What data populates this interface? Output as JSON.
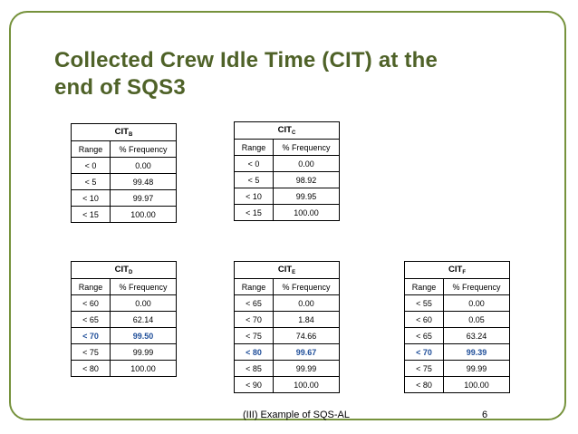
{
  "slide": {
    "title_line1": "Collected Crew Idle Time (CIT) at the",
    "title_line2": "end of SQS3",
    "footer_text": "(III) Example of SQS-AL",
    "page_number": "6",
    "accent_color": "#76923c",
    "title_color": "#4f6228",
    "highlight_color": "#1f4e99"
  },
  "tables": {
    "b": {
      "head": "CIT",
      "sub": "B",
      "col_range": "Range",
      "col_freq": "% Frequency",
      "rows": [
        {
          "range": "< 0",
          "freq": "0.00"
        },
        {
          "range": "< 5",
          "freq": "99.48"
        },
        {
          "range": "< 10",
          "freq": "99.97"
        },
        {
          "range": "< 15",
          "freq": "100.00"
        }
      ]
    },
    "c": {
      "head": "CIT",
      "sub": "C",
      "col_range": "Range",
      "col_freq": "% Frequency",
      "rows": [
        {
          "range": "< 0",
          "freq": "0.00"
        },
        {
          "range": "< 5",
          "freq": "98.92"
        },
        {
          "range": "< 10",
          "freq": "99.95"
        },
        {
          "range": "< 15",
          "freq": "100.00"
        }
      ]
    },
    "d": {
      "head": "CIT",
      "sub": "D",
      "col_range": "Range",
      "col_freq": "% Frequency",
      "highlight_row": 2,
      "rows": [
        {
          "range": "< 60",
          "freq": "0.00"
        },
        {
          "range": "< 65",
          "freq": "62.14"
        },
        {
          "range": "< 70",
          "freq": "99.50"
        },
        {
          "range": "< 75",
          "freq": "99.99"
        },
        {
          "range": "< 80",
          "freq": "100.00"
        }
      ]
    },
    "e": {
      "head": "CIT",
      "sub": "E",
      "col_range": "Range",
      "col_freq": "% Frequency",
      "highlight_row": 3,
      "rows": [
        {
          "range": "< 65",
          "freq": "0.00"
        },
        {
          "range": "< 70",
          "freq": "1.84"
        },
        {
          "range": "< 75",
          "freq": "74.66"
        },
        {
          "range": "< 80",
          "freq": "99.67"
        },
        {
          "range": "< 85",
          "freq": "99.99"
        },
        {
          "range": "< 90",
          "freq": "100.00"
        }
      ]
    },
    "f": {
      "head": "CIT",
      "sub": "F",
      "col_range": "Range",
      "col_freq": "% Frequency",
      "highlight_row": 3,
      "rows": [
        {
          "range": "< 55",
          "freq": "0.00"
        },
        {
          "range": "< 60",
          "freq": "0.05"
        },
        {
          "range": "< 65",
          "freq": "63.24"
        },
        {
          "range": "< 70",
          "freq": "99.39"
        },
        {
          "range": "< 75",
          "freq": "99.99"
        },
        {
          "range": "< 80",
          "freq": "100.00"
        }
      ]
    }
  }
}
